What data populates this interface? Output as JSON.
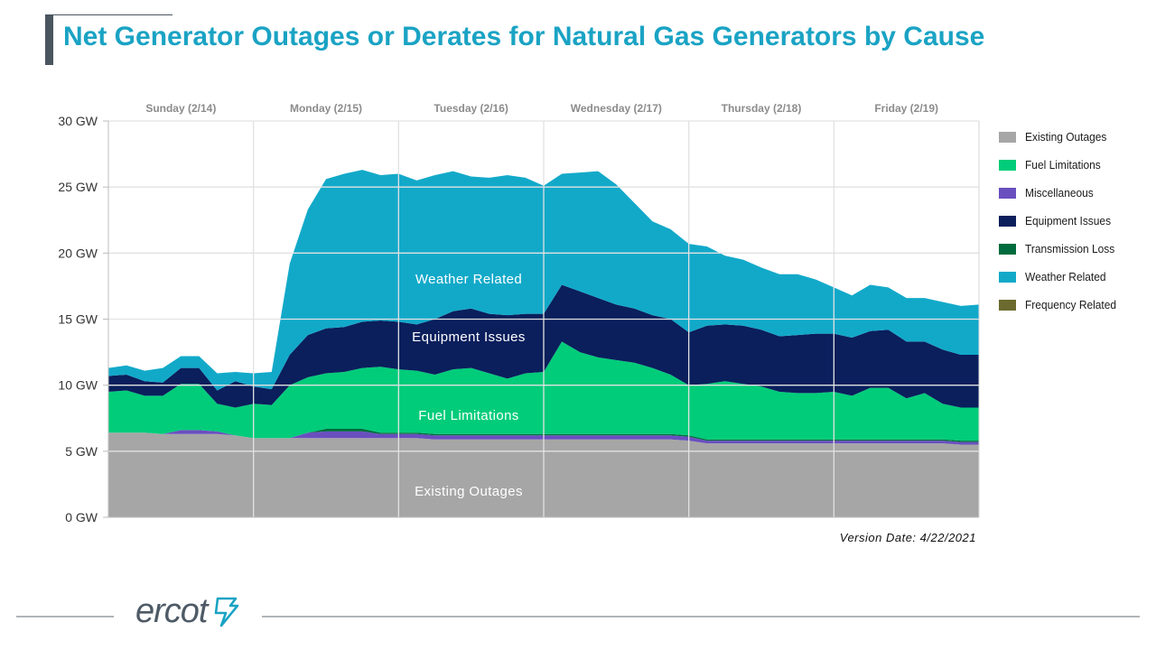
{
  "page": {
    "title": "Net Generator Outages or Derates for Natural Gas Generators by Cause",
    "version_date": "Version Date: 4/22/2021",
    "logo_text": "ercot"
  },
  "colors": {
    "title": "#1aa3c4",
    "existing_outages": "#a6a6a6",
    "fuel_limitations": "#00cc7a",
    "miscellaneous": "#6a4fbf",
    "equipment_issues": "#0a1f5c",
    "transmission_loss": "#006b3c",
    "weather_related": "#12a9c9",
    "frequency_related": "#6b6b2f"
  },
  "chart_data": {
    "type": "area",
    "stacked": true,
    "ylim": [
      0,
      30
    ],
    "yticks": [
      0,
      5,
      10,
      15,
      20,
      25,
      30
    ],
    "ytick_labels": [
      "0 GW",
      "5 GW",
      "10 GW",
      "15 GW",
      "20 GW",
      "25 GW",
      "30 GW"
    ],
    "x_range": [
      0,
      6
    ],
    "categories": [
      "Sunday (2/14)",
      "Monday (2/15)",
      "Tuesday (2/16)",
      "Wednesday (2/17)",
      "Thursday (2/18)",
      "Friday (2/19)"
    ],
    "grid": true,
    "legend_position": "right",
    "x": [
      0.0,
      0.125,
      0.25,
      0.375,
      0.5,
      0.625,
      0.75,
      0.875,
      1.0,
      1.125,
      1.25,
      1.375,
      1.5,
      1.625,
      1.75,
      1.875,
      2.0,
      2.125,
      2.25,
      2.375,
      2.5,
      2.625,
      2.75,
      2.875,
      3.0,
      3.125,
      3.25,
      3.375,
      3.5,
      3.625,
      3.75,
      3.875,
      4.0,
      4.125,
      4.25,
      4.375,
      4.5,
      4.625,
      4.75,
      4.875,
      5.0,
      5.125,
      5.25,
      5.375,
      5.5,
      5.625,
      5.75,
      5.875,
      6.0
    ],
    "series": [
      {
        "name": "Existing Outages",
        "values": [
          6.4,
          6.4,
          6.4,
          6.3,
          6.3,
          6.3,
          6.3,
          6.2,
          6.0,
          6.0,
          6.0,
          6.0,
          6.0,
          6.0,
          6.0,
          6.0,
          6.0,
          6.0,
          5.9,
          5.9,
          5.9,
          5.9,
          5.9,
          5.9,
          5.9,
          5.9,
          5.9,
          5.9,
          5.9,
          5.9,
          5.9,
          5.9,
          5.8,
          5.6,
          5.6,
          5.6,
          5.6,
          5.6,
          5.6,
          5.6,
          5.6,
          5.6,
          5.6,
          5.6,
          5.6,
          5.6,
          5.6,
          5.5,
          5.5
        ]
      },
      {
        "name": "Miscellaneous",
        "values": [
          0.0,
          0.0,
          0.0,
          0.0,
          0.3,
          0.3,
          0.2,
          0.0,
          0.0,
          0.0,
          0.0,
          0.4,
          0.5,
          0.5,
          0.5,
          0.3,
          0.3,
          0.3,
          0.3,
          0.3,
          0.3,
          0.3,
          0.3,
          0.3,
          0.3,
          0.3,
          0.3,
          0.3,
          0.3,
          0.3,
          0.3,
          0.3,
          0.3,
          0.2,
          0.2,
          0.2,
          0.2,
          0.2,
          0.2,
          0.2,
          0.2,
          0.2,
          0.2,
          0.2,
          0.2,
          0.2,
          0.2,
          0.2,
          0.2
        ]
      },
      {
        "name": "Transmission Loss",
        "values": [
          0.0,
          0.0,
          0.0,
          0.0,
          0.0,
          0.0,
          0.0,
          0.0,
          0.0,
          0.0,
          0.0,
          0.0,
          0.2,
          0.2,
          0.2,
          0.1,
          0.1,
          0.1,
          0.1,
          0.1,
          0.1,
          0.1,
          0.1,
          0.1,
          0.1,
          0.1,
          0.1,
          0.1,
          0.1,
          0.1,
          0.1,
          0.1,
          0.1,
          0.1,
          0.1,
          0.1,
          0.1,
          0.1,
          0.1,
          0.1,
          0.1,
          0.1,
          0.1,
          0.1,
          0.1,
          0.1,
          0.1,
          0.1,
          0.1
        ]
      },
      {
        "name": "Frequency Related",
        "values": [
          0.0,
          0.0,
          0.0,
          0.0,
          0.0,
          0.0,
          0.0,
          0.0,
          0.0,
          0.0,
          0.0,
          0.0,
          0.0,
          0.0,
          0.0,
          0.0,
          0.0,
          0.0,
          0.0,
          0.0,
          0.0,
          0.0,
          0.0,
          0.0,
          0.0,
          0.0,
          0.0,
          0.0,
          0.0,
          0.0,
          0.0,
          0.0,
          0.0,
          0.0,
          0.0,
          0.0,
          0.0,
          0.0,
          0.0,
          0.0,
          0.0,
          0.0,
          0.0,
          0.0,
          0.0,
          0.0,
          0.0,
          0.0,
          0.0
        ]
      },
      {
        "name": "Fuel Limitations",
        "values": [
          3.1,
          3.2,
          2.8,
          2.9,
          3.5,
          3.5,
          2.1,
          2.1,
          2.6,
          2.5,
          4.0,
          4.2,
          4.2,
          4.3,
          4.6,
          5.0,
          4.8,
          4.7,
          4.5,
          4.9,
          5.0,
          4.6,
          4.2,
          4.6,
          4.7,
          7.0,
          6.2,
          5.8,
          5.6,
          5.4,
          5.0,
          4.5,
          3.8,
          4.2,
          4.4,
          4.2,
          4.0,
          3.6,
          3.5,
          3.5,
          3.6,
          3.3,
          3.9,
          3.9,
          3.1,
          3.5,
          2.7,
          2.5,
          2.5
        ]
      },
      {
        "name": "Equipment Issues",
        "values": [
          1.2,
          1.2,
          1.1,
          1.0,
          1.2,
          1.2,
          1.0,
          2.0,
          1.3,
          1.2,
          2.3,
          3.2,
          3.4,
          3.4,
          3.5,
          3.5,
          3.6,
          3.5,
          4.2,
          4.4,
          4.5,
          4.5,
          4.8,
          4.5,
          4.4,
          4.3,
          4.6,
          4.5,
          4.2,
          4.1,
          4.0,
          4.2,
          4.0,
          4.4,
          4.3,
          4.4,
          4.3,
          4.2,
          4.4,
          4.5,
          4.4,
          4.4,
          4.3,
          4.4,
          4.3,
          3.9,
          4.1,
          4.0,
          4.0
        ]
      },
      {
        "name": "Weather Related",
        "values": [
          0.6,
          0.7,
          0.8,
          1.1,
          0.9,
          0.9,
          1.3,
          0.7,
          1.0,
          1.3,
          6.9,
          9.5,
          11.3,
          11.6,
          11.5,
          11.0,
          11.2,
          10.9,
          10.9,
          10.6,
          10.0,
          10.3,
          10.6,
          10.3,
          9.7,
          8.4,
          9.0,
          9.6,
          9.1,
          8.0,
          7.1,
          6.8,
          6.7,
          6.0,
          5.2,
          5.0,
          4.7,
          4.7,
          4.6,
          4.1,
          3.5,
          3.2,
          3.5,
          3.2,
          3.3,
          3.3,
          3.6,
          3.7,
          3.8
        ]
      }
    ]
  },
  "annotations": {
    "weather": "Weather Related",
    "equipment": "Equipment  Issues",
    "fuel": "Fuel Limitations",
    "existing": "Existing Outages"
  },
  "legend": [
    {
      "label": "Existing Outages",
      "color_key": "existing_outages"
    },
    {
      "label": "Fuel  Limitations",
      "color_key": "fuel_limitations"
    },
    {
      "label": "Miscellaneous",
      "color_key": "miscellaneous"
    },
    {
      "label": "Equipment Issues",
      "color_key": "equipment_issues"
    },
    {
      "label": "Transmission Loss",
      "color_key": "transmission_loss"
    },
    {
      "label": "Weather Related",
      "color_key": "weather_related"
    },
    {
      "label": "Frequency Related",
      "color_key": "frequency_related"
    }
  ]
}
